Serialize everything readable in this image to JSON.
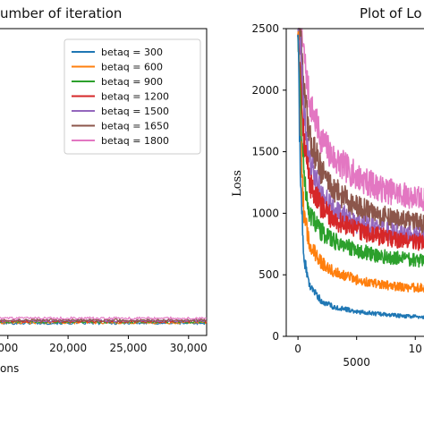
{
  "chart_data": [
    {
      "type": "line",
      "title": "umber of iteration",
      "xlabel": "ons",
      "ylabel": "",
      "x_ticks": [
        "000",
        "20,000",
        "25,000",
        "30,000"
      ],
      "x_tick_values": [
        15000,
        20000,
        25000,
        30000
      ],
      "xlim": [
        14200,
        31500
      ],
      "ylim": [
        0,
        2500
      ],
      "legend_position": "upper-right",
      "grid": false,
      "series": [
        {
          "name": "betaq = 300",
          "color": "#1f77b4",
          "x": [
            14200,
            31500
          ],
          "values": [
            100,
            100
          ]
        },
        {
          "name": "betaq = 600",
          "color": "#ff7f0e",
          "x": [
            14200,
            31500
          ],
          "values": [
            105,
            105
          ]
        },
        {
          "name": "betaq = 900",
          "color": "#2ca02c",
          "x": [
            14200,
            31500
          ],
          "values": [
            110,
            110
          ]
        },
        {
          "name": "betaq = 1200",
          "color": "#d62728",
          "x": [
            14200,
            31500
          ],
          "values": [
            115,
            115
          ]
        },
        {
          "name": "betaq = 1500",
          "color": "#9467bd",
          "x": [
            14200,
            31500
          ],
          "values": [
            120,
            120
          ]
        },
        {
          "name": "betaq = 1650",
          "color": "#8c564b",
          "x": [
            14200,
            31500
          ],
          "values": [
            125,
            125
          ]
        },
        {
          "name": "betaq = 1800",
          "color": "#e377c2",
          "x": [
            14200,
            31500
          ],
          "values": [
            140,
            140
          ]
        }
      ]
    },
    {
      "type": "line",
      "title": "Plot of Lo",
      "xlabel": "",
      "ylabel": "Loss",
      "y_ticks": [
        "0",
        "500",
        "1000",
        "1500",
        "2000",
        "2500"
      ],
      "y_tick_values": [
        0,
        500,
        1000,
        1500,
        2000,
        2500
      ],
      "x_ticks": [
        "0",
        "5000",
        "10"
      ],
      "x_tick_values": [
        0,
        5000,
        10000
      ],
      "xlim": [
        -1000,
        11200
      ],
      "ylim": [
        0,
        2500
      ],
      "grid": false,
      "series": [
        {
          "color": "#e377c2",
          "x": [
            0,
            200,
            500,
            1000,
            2000,
            3000,
            5000,
            7000,
            9000,
            11200
          ],
          "values": [
            2500,
            2500,
            2300,
            1900,
            1600,
            1450,
            1300,
            1200,
            1150,
            1100
          ]
        },
        {
          "color": "#8c564b",
          "x": [
            0,
            200,
            500,
            1000,
            2000,
            3000,
            5000,
            7000,
            9000,
            11200
          ],
          "values": [
            2500,
            2500,
            2000,
            1600,
            1350,
            1200,
            1050,
            980,
            940,
            900
          ]
        },
        {
          "color": "#9467bd",
          "x": [
            0,
            200,
            500,
            1000,
            2000,
            3000,
            5000,
            7000,
            9000,
            11200
          ],
          "values": [
            2500,
            2400,
            1800,
            1400,
            1150,
            1030,
            920,
            860,
            830,
            800
          ]
        },
        {
          "color": "#d62728",
          "x": [
            0,
            200,
            500,
            1000,
            2000,
            3000,
            5000,
            7000,
            9000,
            11200
          ],
          "values": [
            2500,
            2200,
            1600,
            1250,
            1050,
            950,
            860,
            810,
            780,
            760
          ]
        },
        {
          "color": "#2ca02c",
          "x": [
            0,
            200,
            500,
            1000,
            2000,
            3000,
            5000,
            7000,
            9000,
            11200
          ],
          "values": [
            2500,
            1900,
            1300,
            1000,
            850,
            780,
            700,
            650,
            630,
            610
          ]
        },
        {
          "color": "#ff7f0e",
          "x": [
            0,
            200,
            500,
            1000,
            2000,
            3000,
            5000,
            7000,
            9000,
            11200
          ],
          "values": [
            2500,
            1600,
            1000,
            740,
            600,
            530,
            460,
            420,
            400,
            390
          ]
        },
        {
          "color": "#1f77b4",
          "x": [
            0,
            200,
            500,
            1000,
            2000,
            3000,
            5000,
            7000,
            9000,
            11200
          ],
          "values": [
            2500,
            1300,
            650,
            400,
            290,
            240,
            200,
            180,
            165,
            155
          ]
        }
      ]
    }
  ]
}
